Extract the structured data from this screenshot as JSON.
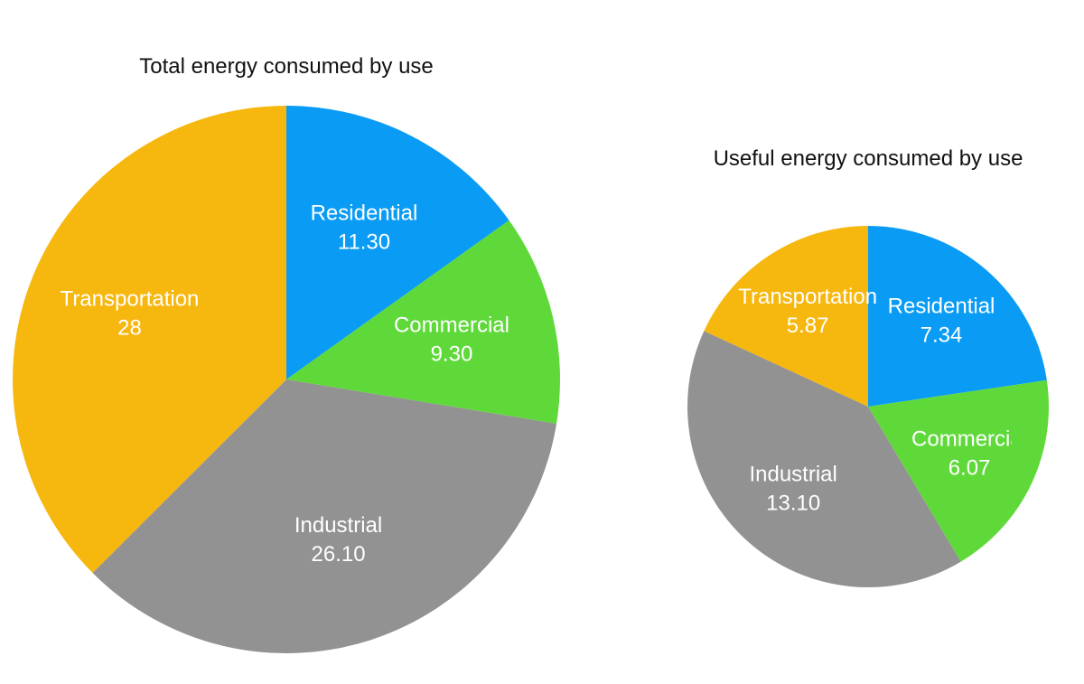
{
  "chart_data": [
    {
      "type": "pie",
      "title": "Total energy consumed by use",
      "categories": [
        "Residential",
        "Commercial",
        "Industrial",
        "Transportation"
      ],
      "values": [
        11.3,
        9.3,
        26.1,
        28
      ],
      "value_labels": [
        "11.30",
        "9.30",
        "26.10",
        "28"
      ],
      "colors": [
        "#0a9cf5",
        "#5fd93a",
        "#929292",
        "#f6b70f"
      ]
    },
    {
      "type": "pie",
      "title": "Useful energy consumed by use",
      "categories": [
        "Residential",
        "Commercial",
        "Industrial",
        "Transportation"
      ],
      "values": [
        7.34,
        6.07,
        13.1,
        5.87
      ],
      "value_labels": [
        "7.34",
        "6.07",
        "13.10",
        "5.87"
      ],
      "colors": [
        "#0a9cf5",
        "#5fd93a",
        "#929292",
        "#f6b70f"
      ]
    }
  ]
}
